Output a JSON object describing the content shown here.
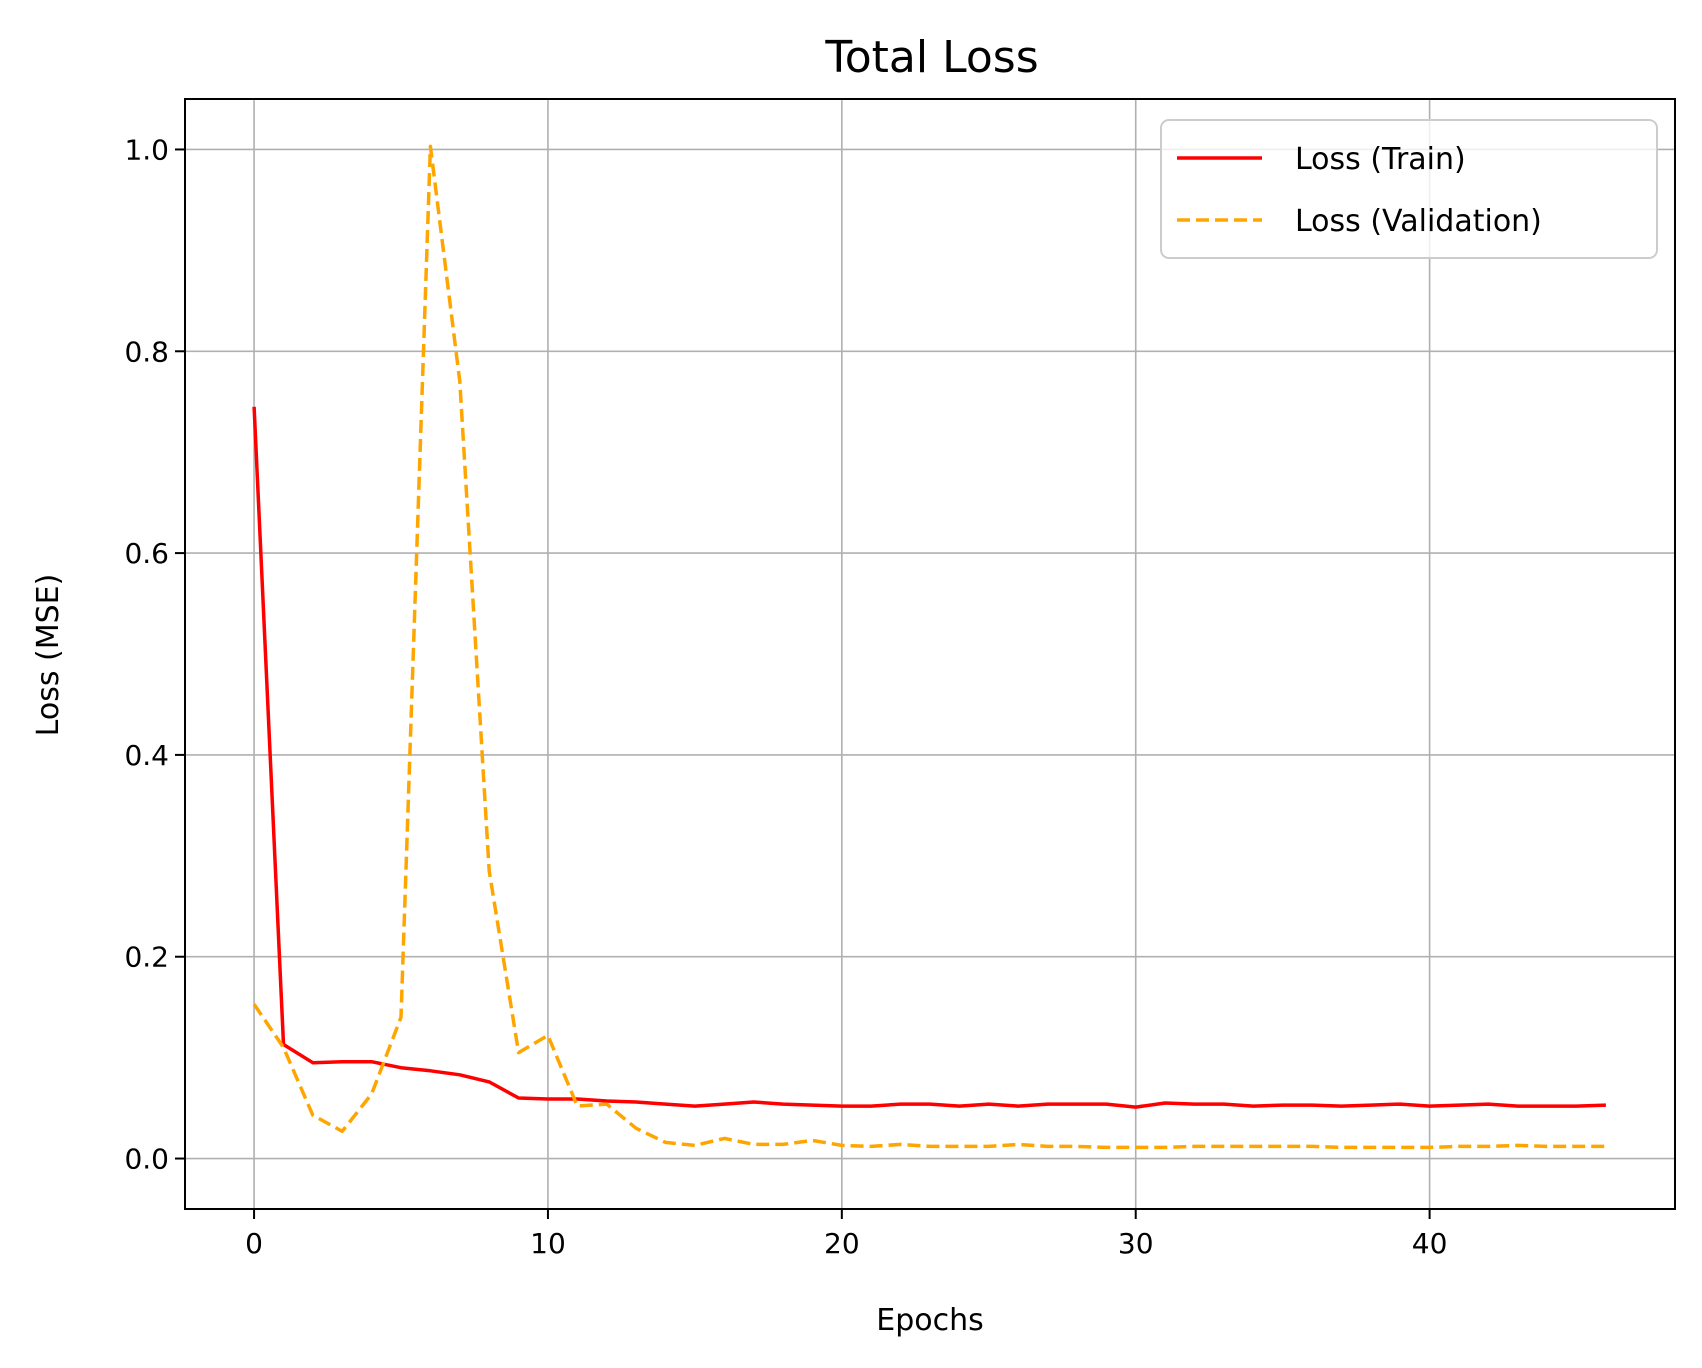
{
  "chart_data": {
    "type": "line",
    "title": "Total Loss",
    "xlabel": "Epochs",
    "ylabel": "Loss (MSE)",
    "xlim": [
      -2.35,
      48.35
    ],
    "ylim": [
      -0.05,
      1.05
    ],
    "xticks": [
      0,
      10,
      20,
      30,
      40
    ],
    "xtick_labels": [
      "0",
      "10",
      "20",
      "30",
      "40"
    ],
    "yticks": [
      0.0,
      0.2,
      0.4,
      0.6,
      0.8,
      1.0
    ],
    "ytick_labels": [
      "0.0",
      "0.2",
      "0.4",
      "0.6",
      "0.8",
      "1.0"
    ],
    "grid": true,
    "legend_position": "top-right",
    "x": [
      0,
      1,
      2,
      3,
      4,
      5,
      6,
      7,
      8,
      9,
      10,
      11,
      12,
      13,
      14,
      15,
      16,
      17,
      18,
      19,
      20,
      21,
      22,
      23,
      24,
      25,
      26,
      27,
      28,
      29,
      30,
      31,
      32,
      33,
      34,
      35,
      36,
      37,
      38,
      39,
      40,
      41,
      42,
      43,
      44,
      45,
      46
    ],
    "series": [
      {
        "name": "Loss (Train)",
        "color": "#ff0000",
        "style": "solid",
        "values": [
          0.745,
          0.113,
          0.095,
          0.096,
          0.096,
          0.09,
          0.087,
          0.083,
          0.076,
          0.06,
          0.059,
          0.059,
          0.057,
          0.056,
          0.054,
          0.052,
          0.054,
          0.056,
          0.054,
          0.053,
          0.052,
          0.052,
          0.054,
          0.054,
          0.052,
          0.054,
          0.052,
          0.054,
          0.054,
          0.054,
          0.051,
          0.055,
          0.054,
          0.054,
          0.052,
          0.053,
          0.053,
          0.052,
          0.053,
          0.054,
          0.052,
          0.053,
          0.054,
          0.052,
          0.052,
          0.052,
          0.053
        ]
      },
      {
        "name": "Loss (Validation)",
        "color": "#ffa500",
        "style": "dashed",
        "values": [
          0.153,
          0.11,
          0.043,
          0.027,
          0.064,
          0.14,
          1.003,
          0.77,
          0.285,
          0.105,
          0.122,
          0.052,
          0.054,
          0.03,
          0.016,
          0.013,
          0.02,
          0.014,
          0.014,
          0.018,
          0.013,
          0.012,
          0.014,
          0.012,
          0.012,
          0.012,
          0.014,
          0.012,
          0.012,
          0.011,
          0.011,
          0.011,
          0.012,
          0.012,
          0.012,
          0.012,
          0.012,
          0.011,
          0.011,
          0.011,
          0.011,
          0.012,
          0.012,
          0.013,
          0.012,
          0.012,
          0.012
        ]
      }
    ]
  }
}
